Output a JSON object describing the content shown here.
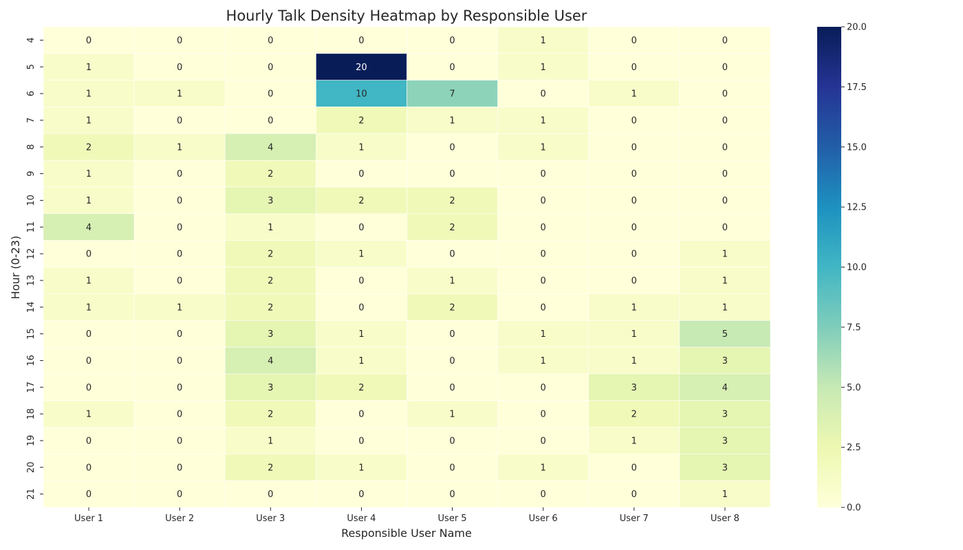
{
  "chart_data": {
    "type": "heatmap",
    "title": "Hourly Talk Density Heatmap by Responsible User",
    "xlabel": "Responsible User Name",
    "ylabel": "Hour (0-23)",
    "x_categories": [
      "User 1",
      "User 2",
      "User 3",
      "User 4",
      "User 5",
      "User 6",
      "User 7",
      "User 8"
    ],
    "y_categories": [
      "4",
      "5",
      "6",
      "7",
      "8",
      "9",
      "10",
      "11",
      "12",
      "13",
      "14",
      "15",
      "16",
      "17",
      "18",
      "19",
      "20",
      "21"
    ],
    "values": [
      [
        0,
        0,
        0,
        0,
        0,
        1,
        0,
        0
      ],
      [
        1,
        0,
        0,
        20,
        0,
        1,
        0,
        0
      ],
      [
        1,
        1,
        0,
        10,
        7,
        0,
        1,
        0
      ],
      [
        1,
        0,
        0,
        2,
        1,
        1,
        0,
        0
      ],
      [
        2,
        1,
        4,
        1,
        0,
        1,
        0,
        0
      ],
      [
        1,
        0,
        2,
        0,
        0,
        0,
        0,
        0
      ],
      [
        1,
        0,
        3,
        2,
        2,
        0,
        0,
        0
      ],
      [
        4,
        0,
        1,
        0,
        2,
        0,
        0,
        0
      ],
      [
        0,
        0,
        2,
        1,
        0,
        0,
        0,
        1
      ],
      [
        1,
        0,
        2,
        0,
        1,
        0,
        0,
        1
      ],
      [
        1,
        1,
        2,
        0,
        2,
        0,
        1,
        1
      ],
      [
        0,
        0,
        3,
        1,
        0,
        1,
        1,
        5
      ],
      [
        0,
        0,
        4,
        1,
        0,
        1,
        1,
        3
      ],
      [
        0,
        0,
        3,
        2,
        0,
        0,
        3,
        4
      ],
      [
        1,
        0,
        2,
        0,
        1,
        0,
        2,
        3
      ],
      [
        0,
        0,
        1,
        0,
        0,
        0,
        1,
        3
      ],
      [
        0,
        0,
        2,
        1,
        0,
        1,
        0,
        3
      ],
      [
        0,
        0,
        0,
        0,
        0,
        0,
        0,
        1
      ]
    ],
    "colormap": "YlGnBu",
    "colormap_stops": [
      "#ffffd9",
      "#edf8b1",
      "#c7e9b4",
      "#7fcdbb",
      "#41b6c4",
      "#1d91c0",
      "#225ea8",
      "#253494",
      "#081d58"
    ],
    "vmin": 0,
    "vmax": 20,
    "colorbar_ticks": [
      "0.0",
      "2.5",
      "5.0",
      "7.5",
      "10.0",
      "12.5",
      "15.0",
      "17.5",
      "20.0"
    ],
    "annotations": true,
    "cell_border_color": "#ffffff"
  }
}
